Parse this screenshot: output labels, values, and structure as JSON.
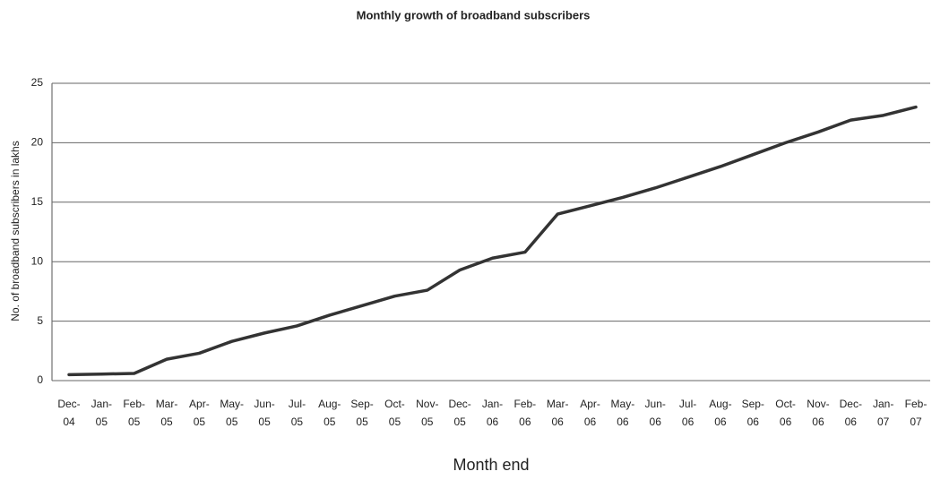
{
  "chart_data": {
    "type": "line",
    "title": "Monthly growth of broadband subscribers",
    "x_label": "Month end",
    "y_label": "No. of broadband subscribers in lakhs",
    "categories": [
      "Dec-04",
      "Jan-05",
      "Feb-05",
      "Mar-05",
      "Apr-05",
      "May-05",
      "Jun-05",
      "Jul-05",
      "Aug-05",
      "Sep-05",
      "Oct-05",
      "Nov-05",
      "Dec-05",
      "Jan-06",
      "Feb-06",
      "Mar-06",
      "Apr-06",
      "May-06",
      "Jun-06",
      "Jul-06",
      "Aug-06",
      "Sep-06",
      "Oct-06",
      "Nov-06",
      "Dec-06",
      "Jan-07",
      "Feb-07"
    ],
    "values": [
      0.5,
      0.55,
      0.6,
      1.8,
      2.3,
      3.3,
      4.0,
      4.6,
      5.5,
      6.3,
      7.1,
      7.6,
      9.3,
      10.3,
      10.8,
      14.0,
      14.7,
      15.4,
      16.2,
      17.1,
      18.0,
      19.0,
      20.0,
      20.9,
      21.9,
      22.3,
      23.0
    ],
    "color": "#333333",
    "ylim": [
      0,
      25
    ],
    "yticks": [
      0,
      5,
      10,
      15,
      20,
      25
    ],
    "grid": true
  }
}
